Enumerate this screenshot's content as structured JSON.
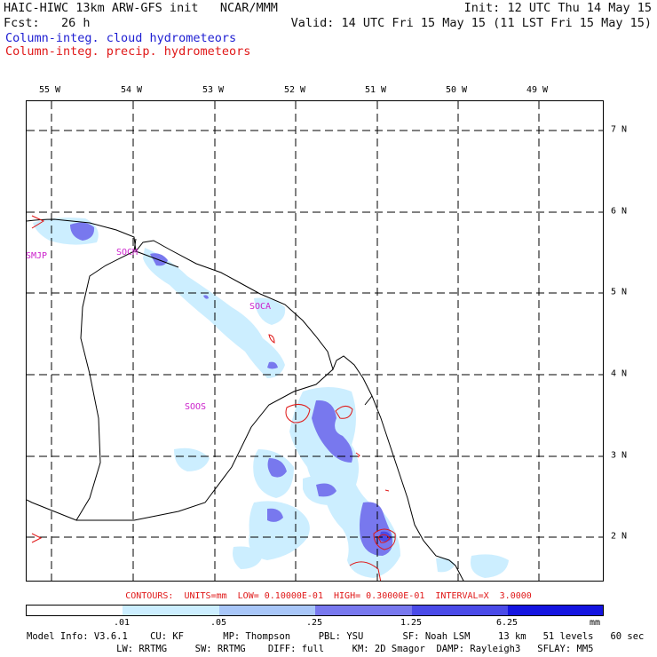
{
  "header": {
    "title": "HAIC-HIWC 13km ARW-GFS init   NCAR/MMM",
    "init": "Init: 12 UTC Thu 14 May 15",
    "fcst": "Fcst:   26 h",
    "valid": "Valid: 14 UTC Fri 15 May 15 (11 LST Fri 15 May 15)",
    "field1": "Column-integ. cloud hydrometeors",
    "field2": "Column-integ. precip. hydrometeors"
  },
  "map": {
    "lon_labels": [
      "55 W",
      "54 W",
      "53 W",
      "52 W",
      "51 W",
      "50 W",
      "49 W"
    ],
    "lat_labels": [
      "7 N",
      "6 N",
      "5 N",
      "4 N",
      "3 N",
      "2 N"
    ],
    "stations": [
      "SMJP",
      "SOCM",
      "SOCA",
      "SOOS"
    ]
  },
  "contours_text": "CONTOURS:  UNITS=mm  LOW= 0.10000E-01  HIGH= 0.30000E-01  INTERVAL=X  3.0000",
  "colorbar": {
    "labels": [
      ".01",
      ".05",
      ".25",
      "1.25",
      "6.25"
    ],
    "units": "mm",
    "colors": [
      "#ffffff",
      "#cceeff",
      "#a8c6f8",
      "#7878ee",
      "#4a4ae8",
      "#1414e0"
    ]
  },
  "footer": {
    "line1": "Model Info: V3.6.1    CU: KF       MP: Thompson     PBL: YSU       SF: Noah LSM     13 km   51 levels   60 sec",
    "line2": "                LW: RRTMG     SW: RRTMG    DIFF: full     KM: 2D Smagor  DAMP: Rayleigh3   SFLAY: MM5"
  }
}
